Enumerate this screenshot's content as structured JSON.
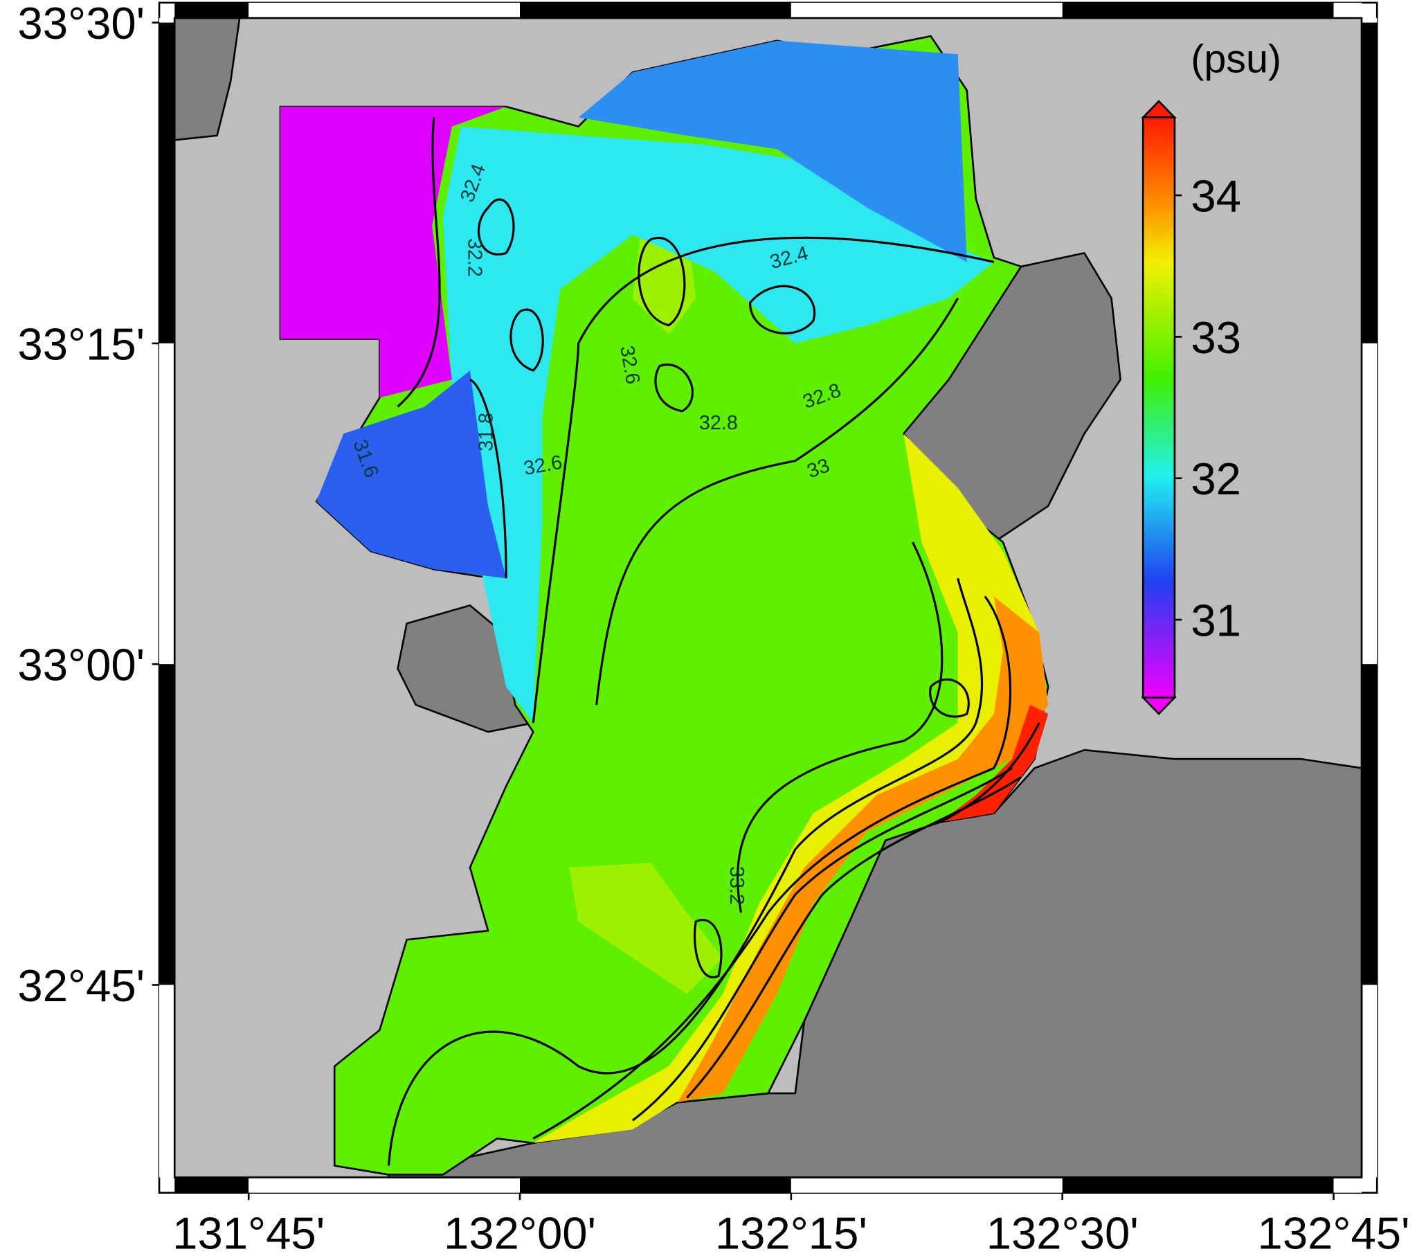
{
  "map": {
    "lon_ticks": [
      {
        "value": 131.75,
        "label": "131°45'"
      },
      {
        "value": 132.0,
        "label": "132°00'"
      },
      {
        "value": 132.25,
        "label": "132°15'"
      },
      {
        "value": 132.5,
        "label": "132°30'"
      },
      {
        "value": 132.75,
        "label": "132°45'"
      }
    ],
    "lat_ticks": [
      {
        "value": 33.5,
        "label": "33°30'"
      },
      {
        "value": 33.25,
        "label": "33°15'"
      },
      {
        "value": 33.0,
        "label": "33°00'"
      },
      {
        "value": 32.75,
        "label": "32°45'"
      }
    ],
    "xlim": [
      131.6676,
      132.79
    ],
    "ylim": [
      32.588,
      33.5155
    ],
    "colorbar": {
      "unit": "(psu)",
      "lim": [
        30.45,
        34.55
      ],
      "ticks": [
        31,
        32,
        33,
        34
      ]
    },
    "contour_labels": [
      "32.4",
      "32.4",
      "32.2",
      "32.6",
      "32.8",
      "32.8",
      "33",
      "31.8",
      "32.6",
      "31.6",
      "33.2"
    ]
  }
}
